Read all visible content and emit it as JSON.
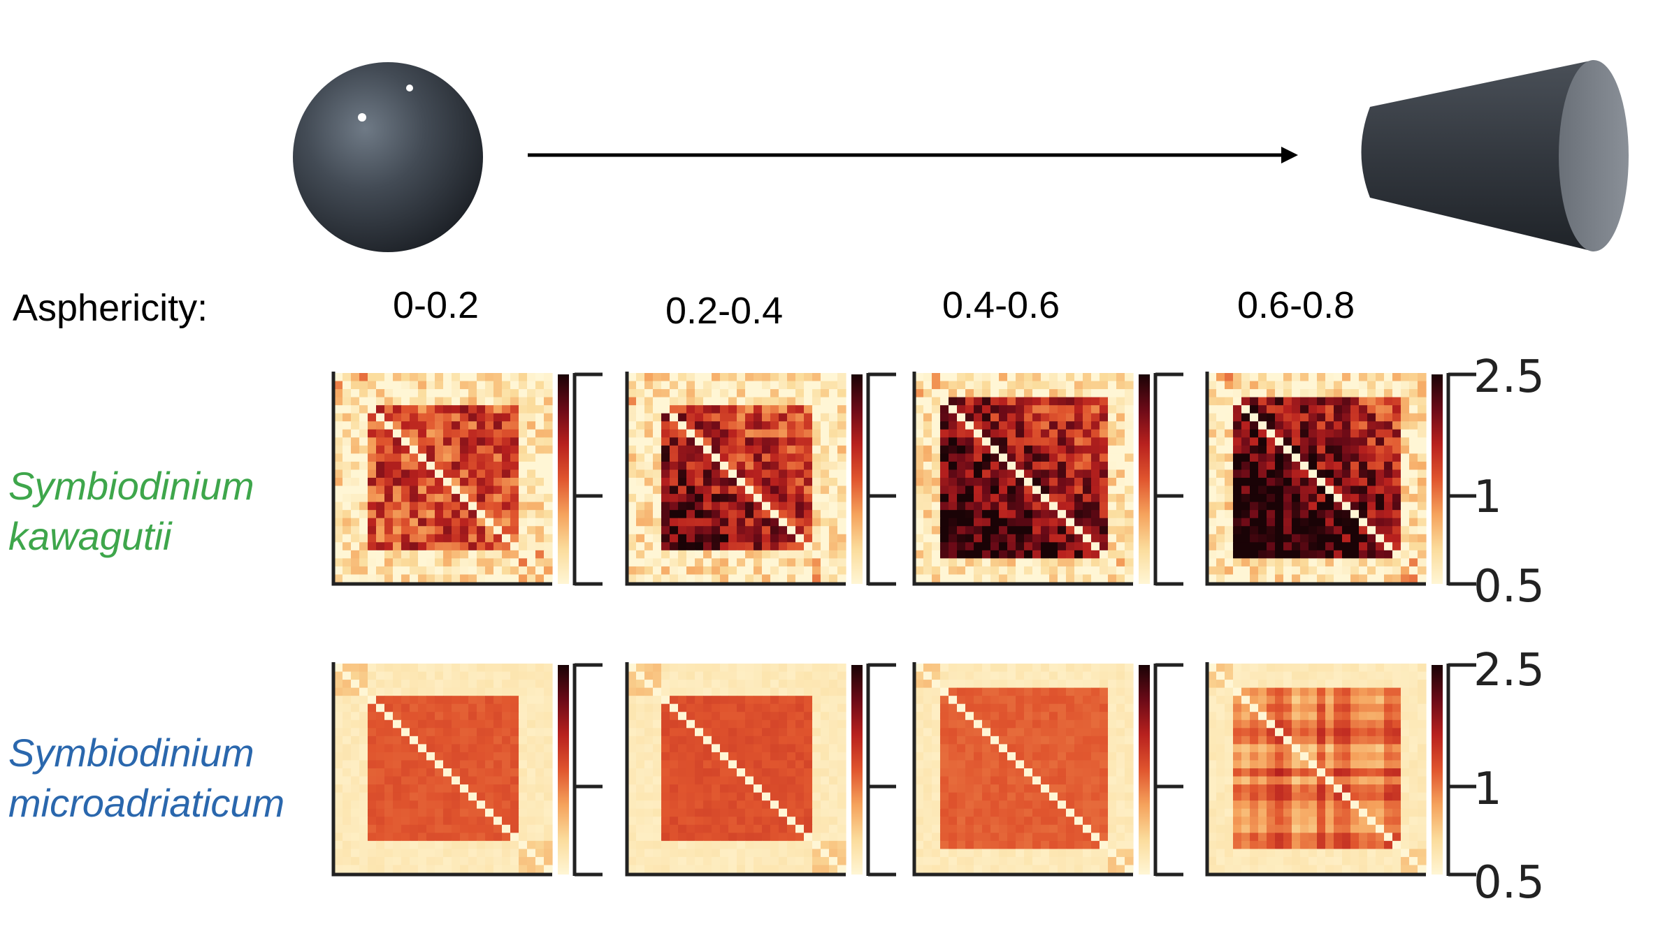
{
  "header": {
    "left_shape": "sphere",
    "right_shape": "truncated-cone",
    "arrow": "right-arrow"
  },
  "asphericity": {
    "label": "Asphericity:",
    "bins": [
      "0-0.2",
      "0.2-0.4",
      "0.4-0.6",
      "0.6-0.8"
    ]
  },
  "species": [
    {
      "line1": "Symbiodinium",
      "line2": "kawagutii",
      "color": "#3ea64b"
    },
    {
      "line1": "Symbiodinium",
      "line2": "microadriaticum",
      "color": "#2a67ad"
    }
  ],
  "colorbar": {
    "ticks": [
      "2.5",
      "1",
      "0.5"
    ],
    "colormap": "YlOrRd-dark",
    "colors": [
      "#fff6d5",
      "#fbdc9c",
      "#f5a25c",
      "#e0552e",
      "#b8211e",
      "#6b0a17",
      "#1a0306"
    ]
  },
  "heatmaps": [
    [
      {
        "style": "noisy",
        "corner_frac": 0.16,
        "intensity": 0.55
      },
      {
        "style": "noisy-grad",
        "corner_frac": 0.14,
        "intensity": 0.68
      },
      {
        "style": "noisy-grad",
        "corner_frac": 0.12,
        "intensity": 0.78
      },
      {
        "style": "noisy-grad",
        "corner_frac": 0.11,
        "intensity": 0.82
      }
    ],
    [
      {
        "style": "smooth",
        "corner_frac": 0.16,
        "intensity": 0.5
      },
      {
        "style": "smooth",
        "corner_frac": 0.14,
        "intensity": 0.52
      },
      {
        "style": "smooth",
        "corner_frac": 0.12,
        "intensity": 0.48
      },
      {
        "style": "grid",
        "corner_frac": 0.11,
        "intensity": 0.45
      }
    ]
  ]
}
